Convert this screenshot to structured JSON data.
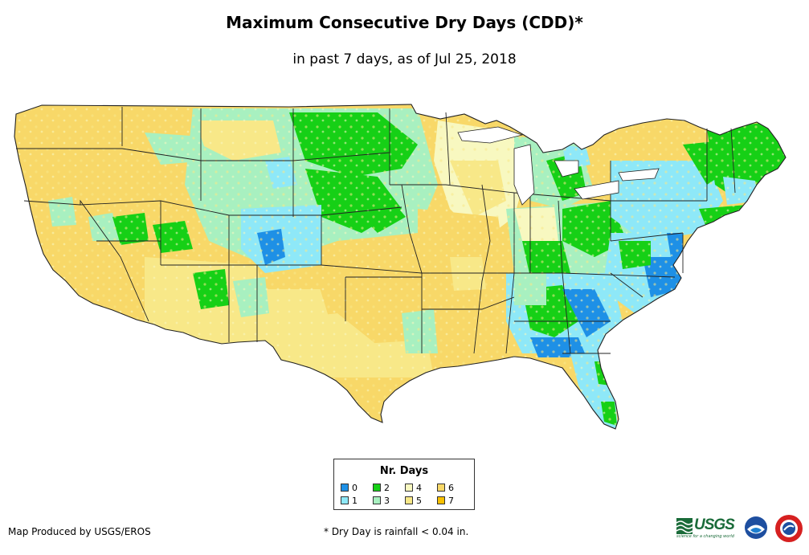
{
  "title": "Maximum Consecutive Dry Days (CDD)*",
  "subtitle": "in past 7 days, as of Jul 25, 2018",
  "legend": {
    "title": "Nr. Days",
    "items": [
      {
        "label": "0",
        "color": "#1e90e6"
      },
      {
        "label": "1",
        "color": "#8ee8f8"
      },
      {
        "label": "2",
        "color": "#16d016"
      },
      {
        "label": "3",
        "color": "#a8f0c0"
      },
      {
        "label": "4",
        "color": "#f8f8c0"
      },
      {
        "label": "5",
        "color": "#f8e888"
      },
      {
        "label": "6",
        "color": "#f8d868"
      },
      {
        "label": "7",
        "color": "#f8c000"
      }
    ]
  },
  "credit": "Map Produced by USGS/EROS",
  "footnote": "* Dry Day is rainfall < 0.04 in.",
  "logos": {
    "usgs_text": "USGS",
    "usgs_tagline": "science for a changing world",
    "noaa_text": "noaa"
  }
}
